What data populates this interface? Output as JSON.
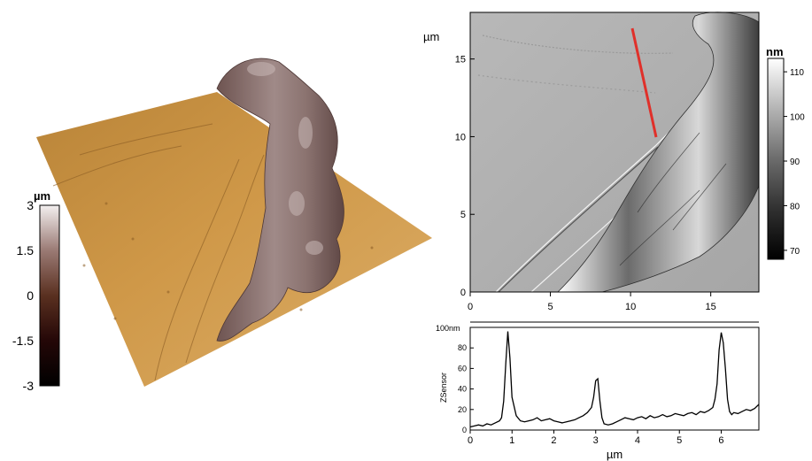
{
  "left_panel": {
    "colorbar": {
      "unit": "µm",
      "ticks": [
        "3",
        "1.5",
        "0",
        "-1.5",
        "-3"
      ],
      "gradient": [
        "#f3efef",
        "#9a7a74",
        "#5a3020",
        "#240707",
        "#000000"
      ]
    },
    "surface_color": "#c98f3e",
    "fiber_color": "#8b7370"
  },
  "map_panel": {
    "y_unit": "µm",
    "y_ticks": [
      "15",
      "10",
      "5",
      "0"
    ],
    "x_ticks": [
      "0",
      "5",
      "10",
      "15"
    ],
    "line_color": "#e0302a",
    "colorbar": {
      "unit": "nm",
      "ticks": [
        "110",
        "100",
        "90",
        "80",
        "70"
      ],
      "gradient": [
        "#ffffff",
        "#b4b4b4",
        "#6c6c6c",
        "#303030",
        "#000000"
      ]
    }
  },
  "profile_panel": {
    "y_top_label": "100nm",
    "ylabel": "ZSensor",
    "xlabel": "µm",
    "y_ticks": [
      "80",
      "60",
      "40",
      "20",
      "0"
    ],
    "x_ticks": [
      "0",
      "1",
      "2",
      "3",
      "4",
      "5",
      "6"
    ]
  },
  "chart_data": {
    "type": "line",
    "xlabel": "µm",
    "ylabel": "ZSensor",
    "xlim": [
      0,
      6.9
    ],
    "ylim": [
      0,
      100
    ],
    "x": [
      0,
      0.1,
      0.2,
      0.3,
      0.4,
      0.5,
      0.6,
      0.7,
      0.75,
      0.8,
      0.85,
      0.9,
      0.95,
      1.0,
      1.1,
      1.2,
      1.3,
      1.4,
      1.5,
      1.6,
      1.7,
      1.8,
      1.9,
      2.0,
      2.1,
      2.2,
      2.3,
      2.4,
      2.5,
      2.6,
      2.7,
      2.8,
      2.9,
      2.95,
      3.0,
      3.05,
      3.1,
      3.15,
      3.2,
      3.3,
      3.4,
      3.5,
      3.6,
      3.7,
      3.8,
      3.9,
      4.0,
      4.1,
      4.2,
      4.3,
      4.4,
      4.5,
      4.6,
      4.7,
      4.8,
      4.9,
      5.0,
      5.1,
      5.2,
      5.3,
      5.4,
      5.5,
      5.6,
      5.7,
      5.8,
      5.85,
      5.9,
      5.95,
      6.0,
      6.05,
      6.1,
      6.15,
      6.2,
      6.25,
      6.3,
      6.4,
      6.5,
      6.6,
      6.7,
      6.8,
      6.9
    ],
    "y": [
      3,
      4,
      5,
      4,
      6,
      5,
      7,
      9,
      12,
      28,
      65,
      96,
      70,
      32,
      14,
      9,
      8,
      9,
      10,
      12,
      9,
      10,
      11,
      9,
      8,
      7,
      8,
      9,
      10,
      12,
      14,
      17,
      22,
      32,
      48,
      50,
      28,
      12,
      6,
      5,
      6,
      8,
      10,
      12,
      11,
      10,
      12,
      13,
      11,
      14,
      12,
      13,
      15,
      13,
      14,
      16,
      15,
      14,
      16,
      17,
      15,
      18,
      17,
      19,
      22,
      30,
      45,
      78,
      95,
      85,
      60,
      30,
      18,
      15,
      17,
      16,
      18,
      20,
      19,
      21,
      25
    ]
  }
}
